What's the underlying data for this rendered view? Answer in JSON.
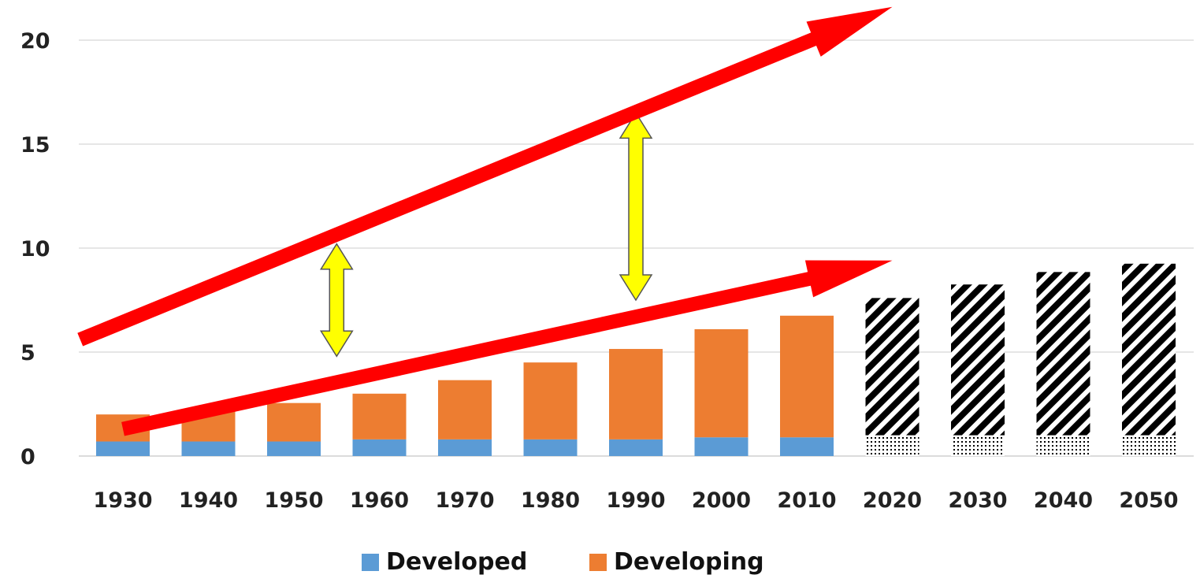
{
  "chart_data": {
    "type": "bar",
    "stacked": true,
    "categories": [
      "1930",
      "1940",
      "1950",
      "1960",
      "1970",
      "1980",
      "1990",
      "2000",
      "2010",
      "2020",
      "2030",
      "2040",
      "2050"
    ],
    "series": [
      {
        "name": "Developed",
        "color": "#5B9BD5",
        "values": [
          0.7,
          0.7,
          0.7,
          0.8,
          0.8,
          0.8,
          0.8,
          0.9,
          0.9,
          1.0,
          1.0,
          1.0,
          1.0
        ]
      },
      {
        "name": "Developing",
        "color": "#ED7D31",
        "values": [
          1.3,
          1.5,
          1.85,
          2.2,
          2.85,
          3.7,
          4.35,
          5.2,
          5.85,
          6.6,
          7.25,
          7.85,
          8.25
        ]
      }
    ],
    "projected_categories": [
      "2020",
      "2030",
      "2040",
      "2050"
    ],
    "projected_style": {
      "Developed": "dotted-pattern",
      "Developing": "diagonal-stripes"
    },
    "ylim": [
      0,
      20
    ],
    "yticks": [
      0,
      5,
      10,
      15,
      20
    ],
    "grid": true,
    "legend_position": "bottom",
    "annotations": {
      "red_arrows": [
        {
          "from": {
            "x": "1925",
            "y": 5.6
          },
          "to": {
            "x": "2020",
            "y": 21.6
          }
        },
        {
          "from": {
            "x": "1930",
            "y": 1.3
          },
          "to": {
            "x": "2020",
            "y": 9.4
          }
        }
      ],
      "yellow_double_arrows": [
        {
          "x": "1955",
          "y1": 4.8,
          "y2": 10.2
        },
        {
          "x": "1990",
          "y1": 7.5,
          "y2": 16.5
        }
      ],
      "red_color": "#FF0000",
      "yellow_color": "#FFFF00"
    }
  }
}
